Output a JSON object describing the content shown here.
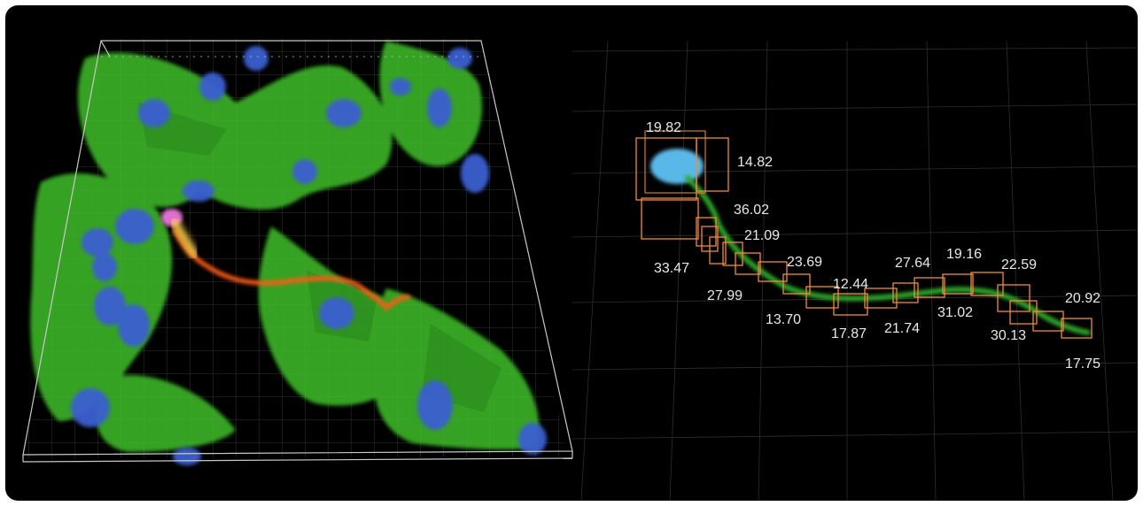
{
  "figure": {
    "panel_color": "#000000",
    "left_view": {
      "description_colors": {
        "cytoplasm": "#3fbf2a",
        "nucleus": "#3a5fd0",
        "traced_cell": "#ff5a18",
        "bounding_box": "#c8c8c8"
      }
    },
    "right_view": {
      "box_color": "#f08a3a",
      "segment_labels": [
        "19.82",
        "14.82",
        "36.02",
        "21.09",
        "33.47",
        "23.69",
        "27.99",
        "12.44",
        "13.70",
        "27.64",
        "19.16",
        "22.59",
        "31.02",
        "17.87",
        "21.74",
        "30.13",
        "20.92",
        "17.75"
      ]
    }
  }
}
